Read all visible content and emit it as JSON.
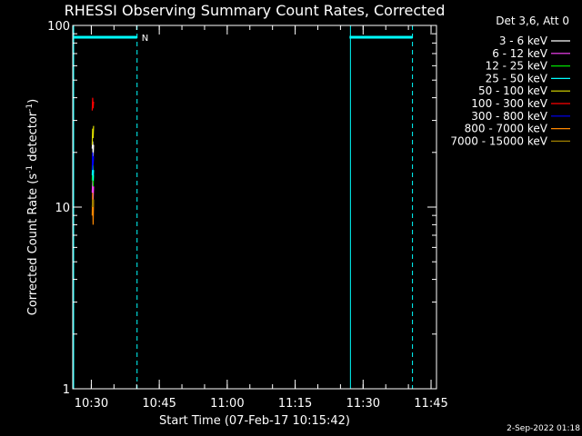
{
  "chart_data": {
    "type": "line",
    "title": "RHESSI Observing Summary Count Rates, Corrected",
    "xlabel": "Start Time (07-Feb-17 10:15:42)",
    "ylabel": "Corrected Count Rate (s",
    "ylabel_sup1": "-1",
    "ylabel_mid": " detector",
    "ylabel_sup2": "-1",
    "ylabel_end": ")",
    "ylog": true,
    "ylim": [
      1,
      100
    ],
    "xlim_minutes": [
      10.2,
      90.5
    ],
    "yticks": [
      {
        "value": 1,
        "label": "1"
      },
      {
        "value": 10,
        "label": "10"
      },
      {
        "value": 100,
        "label": "100"
      }
    ],
    "xticks": [
      {
        "minute": 14.3,
        "label": "10:30"
      },
      {
        "minute": 29.3,
        "label": "10:45"
      },
      {
        "minute": 44.3,
        "label": "11:00"
      },
      {
        "minute": 59.3,
        "label": "11:15"
      },
      {
        "minute": 74.3,
        "label": "11:30"
      },
      {
        "minute": 89.3,
        "label": "11:45"
      }
    ],
    "legend_header": "Det 3,6, Att 0",
    "legend_placement": "right",
    "series": [
      {
        "name": "3 - 6 keV",
        "color": "#ffffff",
        "points": [
          [
            14.5,
            21
          ],
          [
            14.6,
            23
          ],
          [
            14.7,
            19
          ],
          [
            14.8,
            22
          ]
        ]
      },
      {
        "name": "6 - 12 keV",
        "color": "#ff44ff",
        "points": [
          [
            14.5,
            12
          ],
          [
            14.6,
            14
          ],
          [
            14.7,
            11
          ],
          [
            14.8,
            13
          ]
        ]
      },
      {
        "name": "12 - 25 keV",
        "color": "#00e000",
        "points": [
          [
            14.5,
            14
          ],
          [
            14.6,
            16
          ],
          [
            14.7,
            13
          ],
          [
            14.8,
            15
          ]
        ]
      },
      {
        "name": "25 - 50 keV",
        "color": "#00ffff",
        "points": [
          [
            14.5,
            15
          ],
          [
            14.6,
            17
          ],
          [
            14.7,
            14
          ],
          [
            14.8,
            16
          ]
        ]
      },
      {
        "name": "50 - 100 keV",
        "color": "#e0e000",
        "points": [
          [
            14.5,
            22
          ],
          [
            14.6,
            27
          ],
          [
            14.7,
            24
          ],
          [
            14.8,
            28
          ]
        ]
      },
      {
        "name": "100 - 300 keV",
        "color": "#ff0000",
        "points": [
          [
            14.5,
            34
          ],
          [
            14.6,
            40
          ],
          [
            14.7,
            35
          ],
          [
            14.8,
            38
          ]
        ]
      },
      {
        "name": "300 - 800 keV",
        "color": "#0000ff",
        "points": [
          [
            14.5,
            16
          ],
          [
            14.6,
            20
          ],
          [
            14.7,
            17
          ],
          [
            14.8,
            19
          ]
        ]
      },
      {
        "name": "800 - 7000 keV",
        "color": "#ff8800",
        "points": [
          [
            14.5,
            9
          ],
          [
            14.6,
            12
          ],
          [
            14.7,
            8
          ],
          [
            14.8,
            11
          ]
        ]
      },
      {
        "name": "7000 - 15000 keV",
        "color": "#a08000",
        "points": [
          [
            14.5,
            10
          ],
          [
            14.6,
            11
          ],
          [
            14.7,
            10
          ],
          [
            14.8,
            11
          ]
        ]
      }
    ],
    "night_bars": [
      {
        "start": 10.2,
        "end": 24.4,
        "label": "N"
      },
      {
        "start": 71.3,
        "end": 85.2,
        "label": ""
      }
    ],
    "colors": {
      "background": "#000000",
      "axes": "#ffffff",
      "orbit": "#00ffff"
    }
  },
  "footer_date": "2-Sep-2022 01:18"
}
